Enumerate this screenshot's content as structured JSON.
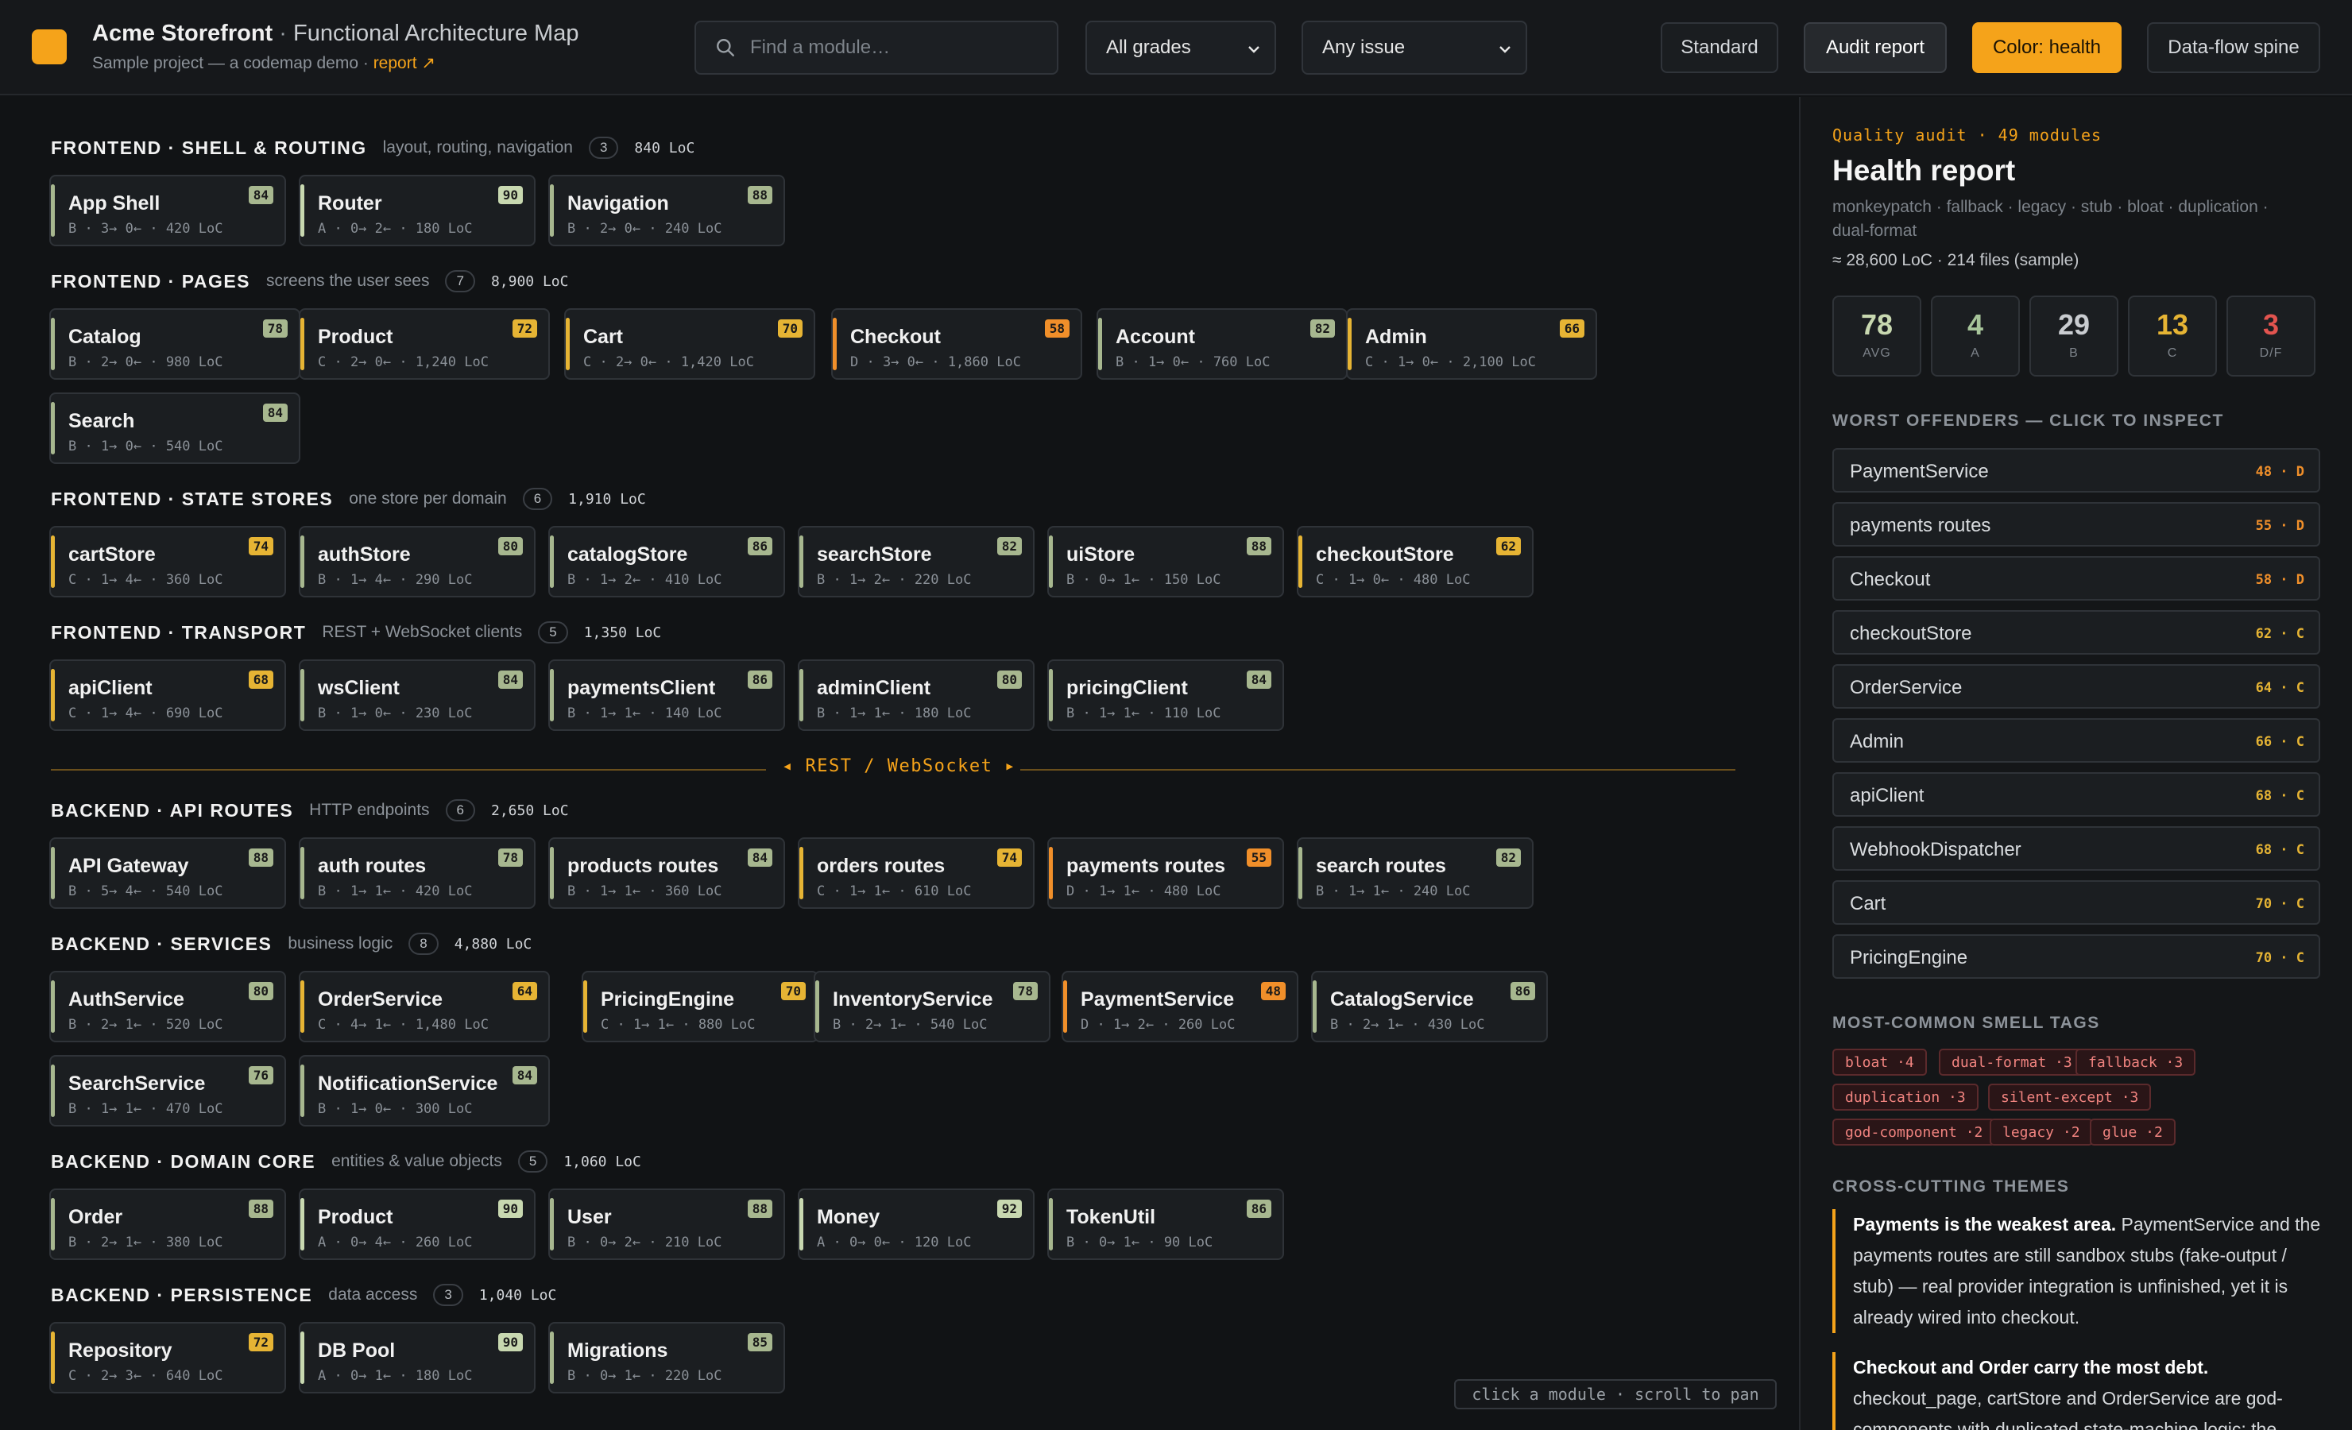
{
  "header": {
    "app_name": "Acme Storefront",
    "separator": "·",
    "map_title": "Functional Architecture Map",
    "subtitle": "Sample project — a codemap demo ·",
    "report_link": "report ↗",
    "search_placeholder": "Find a module…",
    "grade_select": {
      "value": "All grades",
      "options": [
        "All grades"
      ]
    },
    "issue_select": {
      "value": "Any issue",
      "options": [
        "Any issue"
      ]
    },
    "buttons": {
      "standard": "Standard",
      "audit": "Audit report",
      "color_health": "Color: health",
      "spine": "Data-flow spine"
    }
  },
  "colors": {
    "accent": "#f5a31a",
    "grade_A": "#c8d8b0",
    "grade_B": "#a7b78f",
    "grade_C": "#e6b434",
    "grade_D": "#f08f2a",
    "bad": "#e2544f"
  },
  "sections": [
    {
      "name": "FRONTEND · SHELL & ROUTING",
      "desc": "layout, routing, navigation",
      "count": "3",
      "loc": "840 LoC",
      "modules": [
        {
          "name": "App Shell",
          "score": "84",
          "meta": "B · 3→ 0← · 420 LoC",
          "grade": "B"
        },
        {
          "name": "Router",
          "score": "90",
          "meta": "A · 0→ 2← · 180 LoC",
          "grade": "A"
        },
        {
          "name": "Navigation",
          "score": "88",
          "meta": "B · 2→ 0← · 240 LoC",
          "grade": "B"
        }
      ]
    },
    {
      "name": "FRONTEND · PAGES",
      "desc": "screens the user sees",
      "count": "7",
      "loc": "8,900 LoC",
      "modules": [
        {
          "name": "Catalog",
          "score": "78",
          "meta": "B · 2→ 0← · 980 LoC",
          "grade": "B"
        },
        {
          "name": "Product",
          "score": "72",
          "meta": "C · 2→ 0← · 1,240 LoC",
          "grade": "C"
        },
        {
          "name": "Cart",
          "score": "70",
          "meta": "C · 2→ 0← · 1,420 LoC",
          "grade": "C"
        },
        {
          "name": "Checkout",
          "score": "58",
          "meta": "D · 3→ 0← · 1,860 LoC",
          "grade": "D"
        },
        {
          "name": "Account",
          "score": "82",
          "meta": "B · 1→ 0← · 760 LoC",
          "grade": "B"
        },
        {
          "name": "Admin",
          "score": "66",
          "meta": "C · 1→ 0← · 2,100 LoC",
          "grade": "C"
        },
        {
          "name": "Search",
          "score": "84",
          "meta": "B · 1→ 0← · 540 LoC",
          "grade": "B"
        }
      ]
    },
    {
      "name": "FRONTEND · STATE STORES",
      "desc": "one store per domain",
      "count": "6",
      "loc": "1,910 LoC",
      "modules": [
        {
          "name": "cartStore",
          "score": "74",
          "meta": "C · 1→ 4← · 360 LoC",
          "grade": "C"
        },
        {
          "name": "authStore",
          "score": "80",
          "meta": "B · 1→ 4← · 290 LoC",
          "grade": "B"
        },
        {
          "name": "catalogStore",
          "score": "86",
          "meta": "B · 1→ 2← · 410 LoC",
          "grade": "B"
        },
        {
          "name": "searchStore",
          "score": "82",
          "meta": "B · 1→ 2← · 220 LoC",
          "grade": "B"
        },
        {
          "name": "uiStore",
          "score": "88",
          "meta": "B · 0→ 1← · 150 LoC",
          "grade": "B"
        },
        {
          "name": "checkoutStore",
          "score": "62",
          "meta": "C · 1→ 0← · 480 LoC",
          "grade": "C"
        }
      ]
    },
    {
      "name": "FRONTEND · TRANSPORT",
      "desc": "REST + WebSocket clients",
      "count": "5",
      "loc": "1,350 LoC",
      "modules": [
        {
          "name": "apiClient",
          "score": "68",
          "meta": "C · 1→ 4← · 690 LoC",
          "grade": "C"
        },
        {
          "name": "wsClient",
          "score": "84",
          "meta": "B · 1→ 0← · 230 LoC",
          "grade": "B"
        },
        {
          "name": "paymentsClient",
          "score": "86",
          "meta": "B · 1→ 1← · 140 LoC",
          "grade": "B"
        },
        {
          "name": "adminClient",
          "score": "80",
          "meta": "B · 1→ 1← · 180 LoC",
          "grade": "B"
        },
        {
          "name": "pricingClient",
          "score": "84",
          "meta": "B · 1→ 1← · 110 LoC",
          "grade": "B"
        }
      ]
    },
    {
      "name": "BACKEND · API ROUTES",
      "desc": "HTTP endpoints",
      "count": "6",
      "loc": "2,650 LoC",
      "modules": [
        {
          "name": "API Gateway",
          "score": "88",
          "meta": "B · 5→ 4← · 540 LoC",
          "grade": "B"
        },
        {
          "name": "auth routes",
          "score": "78",
          "meta": "B · 1→ 1← · 420 LoC",
          "grade": "B"
        },
        {
          "name": "products routes",
          "score": "84",
          "meta": "B · 1→ 1← · 360 LoC",
          "grade": "B"
        },
        {
          "name": "orders routes",
          "score": "74",
          "meta": "C · 1→ 1← · 610 LoC",
          "grade": "C"
        },
        {
          "name": "payments routes",
          "score": "55",
          "meta": "D · 1→ 1← · 480 LoC",
          "grade": "D"
        },
        {
          "name": "search routes",
          "score": "82",
          "meta": "B · 1→ 1← · 240 LoC",
          "grade": "B"
        }
      ]
    },
    {
      "name": "BACKEND · SERVICES",
      "desc": "business logic",
      "count": "8",
      "loc": "4,880 LoC",
      "modules": [
        {
          "name": "AuthService",
          "score": "80",
          "meta": "B · 2→ 1← · 520 LoC",
          "grade": "B"
        },
        {
          "name": "OrderService",
          "score": "64",
          "meta": "C · 4→ 1← · 1,480 LoC",
          "grade": "C"
        },
        {
          "name": "PricingEngine",
          "score": "70",
          "meta": "C · 1→ 1← · 880 LoC",
          "grade": "C"
        },
        {
          "name": "InventoryService",
          "score": "78",
          "meta": "B · 2→ 1← · 540 LoC",
          "grade": "B"
        },
        {
          "name": "PaymentService",
          "score": "48",
          "meta": "D · 1→ 2← · 260 LoC",
          "grade": "D"
        },
        {
          "name": "CatalogService",
          "score": "86",
          "meta": "B · 2→ 1← · 430 LoC",
          "grade": "B"
        },
        {
          "name": "SearchService",
          "score": "76",
          "meta": "B · 1→ 1← · 470 LoC",
          "grade": "B"
        },
        {
          "name": "NotificationService",
          "score": "84",
          "meta": "B · 1→ 0← · 300 LoC",
          "grade": "B"
        }
      ]
    },
    {
      "name": "BACKEND · DOMAIN CORE",
      "desc": "entities & value objects",
      "count": "5",
      "loc": "1,060 LoC",
      "modules": [
        {
          "name": "Order",
          "score": "88",
          "meta": "B · 2→ 1← · 380 LoC",
          "grade": "B"
        },
        {
          "name": "Product",
          "score": "90",
          "meta": "A · 0→ 4← · 260 LoC",
          "grade": "A"
        },
        {
          "name": "User",
          "score": "88",
          "meta": "B · 0→ 2← · 210 LoC",
          "grade": "B"
        },
        {
          "name": "Money",
          "score": "92",
          "meta": "A · 0→ 0← · 120 LoC",
          "grade": "A"
        },
        {
          "name": "TokenUtil",
          "score": "86",
          "meta": "B · 0→ 1← · 90 LoC",
          "grade": "B"
        }
      ]
    },
    {
      "name": "BACKEND · PERSISTENCE",
      "desc": "data access",
      "count": "3",
      "loc": "1,040 LoC",
      "modules": [
        {
          "name": "Repository",
          "score": "72",
          "meta": "C · 2→ 3← · 640 LoC",
          "grade": "C"
        },
        {
          "name": "DB Pool",
          "score": "90",
          "meta": "A · 0→ 1← · 180 LoC",
          "grade": "A"
        },
        {
          "name": "Migrations",
          "score": "85",
          "meta": "B · 0→ 1← · 220 LoC",
          "grade": "B"
        }
      ]
    }
  ],
  "spine_label": "◂ REST / WebSocket ▸",
  "hint": "click a module · scroll to pan",
  "panel": {
    "kicker": "Quality audit · 49 modules",
    "title": "Health report",
    "tags_line": "monkeypatch · fallback · legacy · stub · bloat · duplication · dual-format",
    "loc_line": "≈ 28,600 LoC · 214 files (sample)",
    "stats": [
      {
        "value": "78",
        "label": "AVG",
        "color": "#c8d8b0"
      },
      {
        "value": "4",
        "label": "A",
        "color": "#a7c59a"
      },
      {
        "value": "29",
        "label": "B",
        "color": "#c9ccd0"
      },
      {
        "value": "13",
        "label": "C",
        "color": "#e6b434"
      },
      {
        "value": "3",
        "label": "D/F",
        "color": "#e2544f"
      }
    ],
    "offenders_heading": "WORST OFFENDERS — CLICK TO INSPECT",
    "offenders": [
      {
        "name": "PaymentService",
        "score": "48 · D"
      },
      {
        "name": "payments routes",
        "score": "55 · D"
      },
      {
        "name": "Checkout",
        "score": "58 · D"
      },
      {
        "name": "checkoutStore",
        "score": "62 · C"
      },
      {
        "name": "OrderService",
        "score": "64 · C"
      },
      {
        "name": "Admin",
        "score": "66 · C"
      },
      {
        "name": "apiClient",
        "score": "68 · C"
      },
      {
        "name": "WebhookDispatcher",
        "score": "68 · C"
      },
      {
        "name": "Cart",
        "score": "70 · C"
      },
      {
        "name": "PricingEngine",
        "score": "70 · C"
      }
    ],
    "smells_heading": "MOST-COMMON SMELL TAGS",
    "smells": [
      "bloat ·4",
      "dual-format ·3",
      "fallback ·3",
      "duplication ·3",
      "silent-except ·3",
      "god-component ·2",
      "legacy ·2",
      "glue ·2"
    ],
    "themes_heading": "CROSS-CUTTING THEMES",
    "themes": [
      {
        "bold": "Payments is the weakest area.",
        "text": " PaymentService and the payments routes are still sandbox stubs (fake-output / stub) — real provider integration is unfinished, yet it is already wired into checkout."
      },
      {
        "bold": "Checkout and Order carry the most debt.",
        "text": " checkout_page, cartStore and OrderService are god-components with duplicated state-machine logic; the"
      }
    ]
  }
}
